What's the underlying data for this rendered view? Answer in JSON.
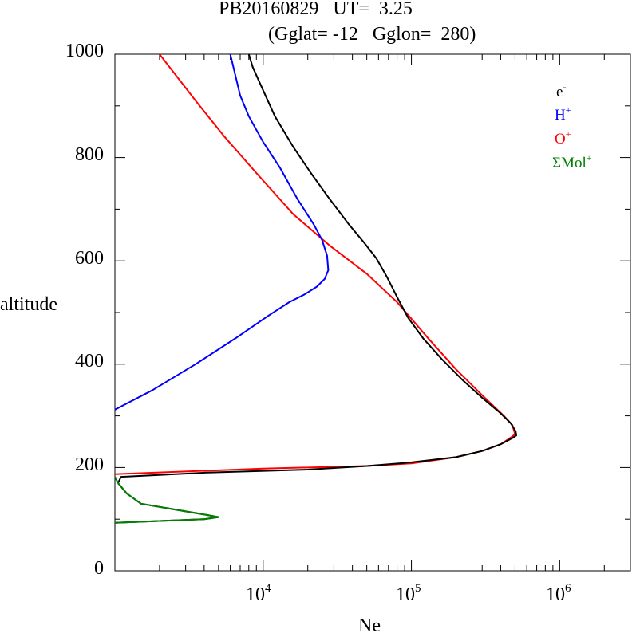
{
  "title_line1": "PB20160829   UT=  3.25",
  "title_line2": "(Gglat= -12   Gglon=  280)",
  "chart_data": {
    "type": "line",
    "title": "PB20160829   UT=  3.25",
    "subtitle": "(Gglat= -12   Gglon=  280)",
    "xlabel": "Ne",
    "ylabel": "altitude",
    "xscale": "log",
    "xlim": [
      1000,
      3000000
    ],
    "ylim": [
      0,
      1000
    ],
    "y_ticks": [
      "0",
      "200",
      "400",
      "600",
      "800",
      "1000"
    ],
    "x_ticks": [
      {
        "base": "10",
        "exp": "4",
        "value": 10000
      },
      {
        "base": "10",
        "exp": "5",
        "value": 100000
      },
      {
        "base": "10",
        "exp": "6",
        "value": 1000000
      }
    ],
    "grid": false,
    "legend_position": "top-right",
    "series": [
      {
        "key": "o_plus",
        "name": "O",
        "sup": "+",
        "color": "#ff0000",
        "points": [
          [
            1000,
            187
          ],
          [
            10000,
            198
          ],
          [
            50000,
            203
          ],
          [
            100000,
            208
          ],
          [
            200000,
            220
          ],
          [
            300000,
            232
          ],
          [
            400000,
            245
          ],
          [
            480000,
            260
          ],
          [
            500000,
            265
          ],
          [
            480000,
            282
          ],
          [
            420000,
            300
          ],
          [
            300000,
            340
          ],
          [
            200000,
            390
          ],
          [
            130000,
            450
          ],
          [
            80000,
            520
          ],
          [
            50000,
            575
          ],
          [
            28000,
            630
          ],
          [
            16000,
            690
          ],
          [
            9000,
            770
          ],
          [
            5500,
            840
          ],
          [
            3500,
            910
          ],
          [
            2000,
            1000
          ]
        ]
      },
      {
        "key": "h_plus",
        "name": "H",
        "sup": "+",
        "color": "#0000ff",
        "points": [
          [
            1000,
            312
          ],
          [
            1800,
            350
          ],
          [
            3500,
            400
          ],
          [
            6500,
            450
          ],
          [
            11000,
            495
          ],
          [
            15000,
            520
          ],
          [
            19000,
            535
          ],
          [
            23000,
            550
          ],
          [
            26000,
            565
          ],
          [
            27500,
            582
          ],
          [
            27000,
            610
          ],
          [
            25000,
            640
          ],
          [
            22000,
            670
          ],
          [
            17000,
            720
          ],
          [
            13000,
            780
          ],
          [
            10000,
            830
          ],
          [
            8000,
            880
          ],
          [
            7000,
            920
          ],
          [
            6000,
            1000
          ]
        ]
      },
      {
        "key": "e_minus",
        "name": "e",
        "sup": "-",
        "color": "#000000",
        "points": [
          [
            1000,
            93
          ],
          [
            4000,
            100
          ],
          [
            5000,
            104
          ],
          [
            4200,
            108
          ],
          [
            1500,
            130
          ],
          [
            1200,
            150
          ],
          [
            1050,
            170
          ],
          [
            1100,
            182
          ],
          [
            4000,
            190
          ],
          [
            20000,
            196
          ],
          [
            50000,
            203
          ],
          [
            100000,
            210
          ],
          [
            200000,
            220
          ],
          [
            300000,
            232
          ],
          [
            400000,
            245
          ],
          [
            480000,
            257
          ],
          [
            510000,
            262
          ],
          [
            505000,
            270
          ],
          [
            470000,
            285
          ],
          [
            400000,
            305
          ],
          [
            300000,
            335
          ],
          [
            220000,
            370
          ],
          [
            160000,
            410
          ],
          [
            120000,
            450
          ],
          [
            95000,
            490
          ],
          [
            80000,
            530
          ],
          [
            68000,
            570
          ],
          [
            58000,
            605
          ],
          [
            48000,
            635
          ],
          [
            38000,
            670
          ],
          [
            28000,
            720
          ],
          [
            21000,
            770
          ],
          [
            16000,
            820
          ],
          [
            12000,
            880
          ],
          [
            10000,
            930
          ],
          [
            8500,
            975
          ],
          [
            8000,
            1000
          ]
        ]
      },
      {
        "key": "mol_plus",
        "name": "ΣMol",
        "sup": "+",
        "color": "#008000",
        "points": [
          [
            1000,
            93
          ],
          [
            4000,
            100
          ],
          [
            5000,
            104
          ],
          [
            4200,
            108
          ],
          [
            1500,
            130
          ],
          [
            1200,
            150
          ],
          [
            1050,
            170
          ],
          [
            1000,
            182
          ]
        ]
      }
    ]
  }
}
